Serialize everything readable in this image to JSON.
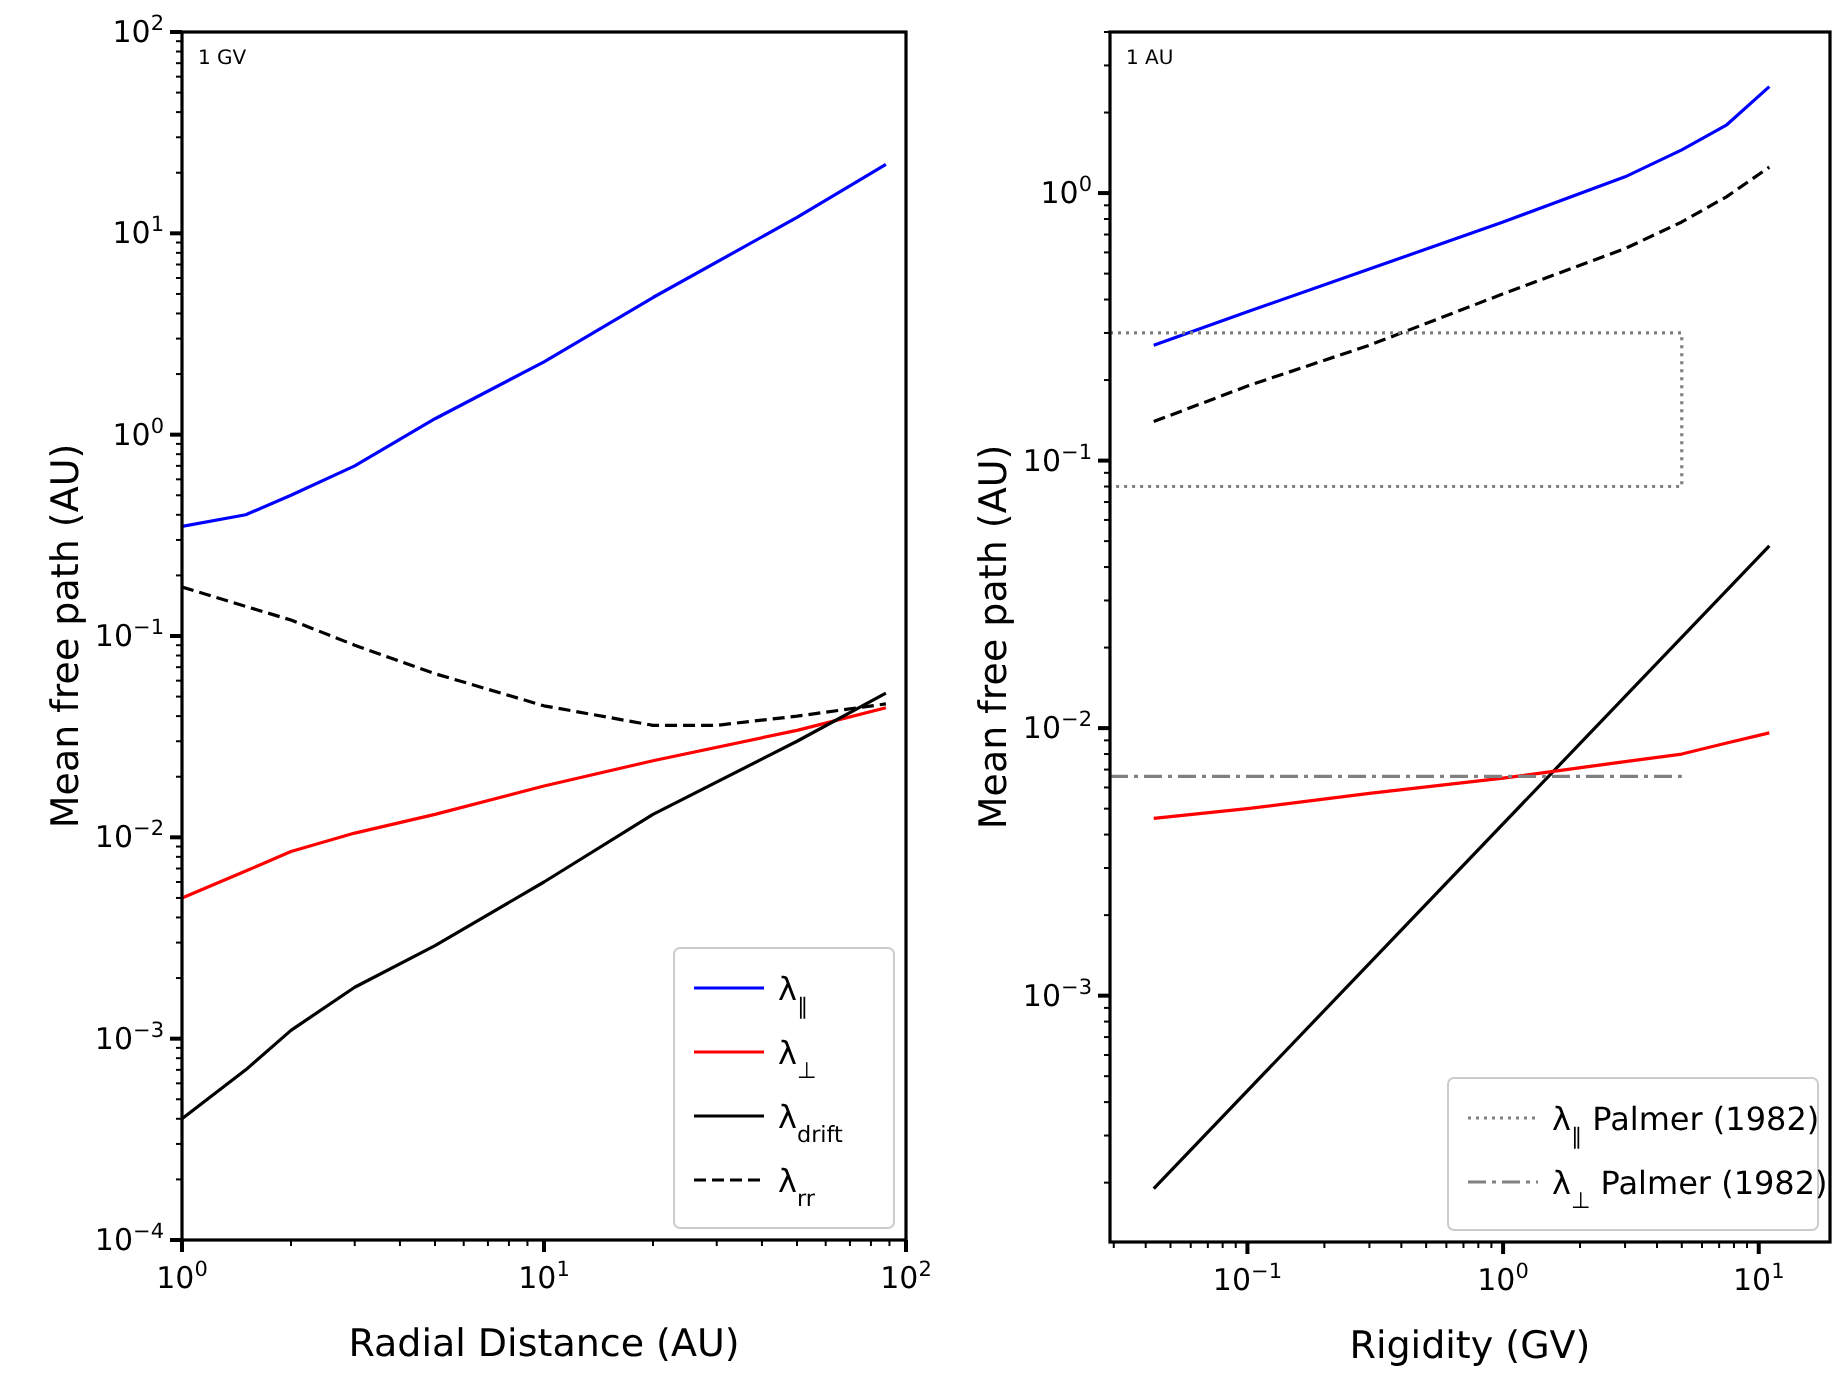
{
  "chart_data": [
    {
      "type": "line",
      "xlabel": "Radial Distance (AU)",
      "ylabel": "Mean free path (AU)",
      "log": "xy",
      "xlim": [
        1,
        100
      ],
      "ylim": [
        0.0001,
        100
      ],
      "xticks": [
        {
          "value": 1,
          "label": "10$^{0}$"
        },
        {
          "value": 10,
          "label": "10$^{1}$"
        },
        {
          "value": 100,
          "label": "10$^{2}$"
        }
      ],
      "yticks": [
        {
          "value": 0.0001,
          "label": "10$^{−4}$"
        },
        {
          "value": 0.001,
          "label": "10$^{−3}$"
        },
        {
          "value": 0.01,
          "label": "10$^{−2}$"
        },
        {
          "value": 0.1,
          "label": "10$^{−1}$"
        },
        {
          "value": 1,
          "label": "10$^{0}$"
        },
        {
          "value": 10,
          "label": "10$^{1}$"
        },
        {
          "value": 100,
          "label": "10$^{2}$"
        }
      ],
      "annotations": [
        "1 GV"
      ],
      "legend": "bottom right",
      "grid": false,
      "series": [
        {
          "name": "λ$_{∥}$",
          "color": "#0000ff",
          "line_style": "solid",
          "x": [
            1,
            1.5,
            2,
            3,
            5,
            10,
            20,
            50,
            88
          ],
          "values": [
            0.35,
            0.4,
            0.5,
            0.7,
            1.2,
            2.3,
            4.8,
            12,
            22
          ]
        },
        {
          "name": "λ$_{⊥}$",
          "color": "#ff0000",
          "line_style": "solid",
          "x": [
            1,
            1.5,
            2,
            3,
            5,
            10,
            20,
            50,
            88
          ],
          "values": [
            0.005,
            0.0068,
            0.0085,
            0.0105,
            0.013,
            0.018,
            0.024,
            0.034,
            0.044
          ]
        },
        {
          "name": "λ$_{drift}$",
          "color": "#000000",
          "line_style": "solid",
          "x": [
            1,
            1.5,
            2,
            3,
            5,
            10,
            20,
            50,
            88
          ],
          "values": [
            0.0004,
            0.0007,
            0.0011,
            0.0018,
            0.0029,
            0.006,
            0.013,
            0.03,
            0.052
          ]
        },
        {
          "name": "λ$_{rr}$",
          "color": "#000000",
          "line_style": "dashed",
          "x": [
            1,
            2,
            3,
            5,
            10,
            20,
            30,
            50,
            88
          ],
          "values": [
            0.175,
            0.12,
            0.09,
            0.065,
            0.045,
            0.036,
            0.036,
            0.04,
            0.046
          ]
        }
      ]
    },
    {
      "type": "line",
      "xlabel": "Rigidity (GV)",
      "ylabel": "Mean free path (AU)",
      "log": "xy",
      "xlim": [
        0.029,
        19
      ],
      "ylim": [
        0.00012,
        4
      ],
      "xticks": [
        {
          "value": 0.1,
          "label": "10$^{−1}$"
        },
        {
          "value": 1,
          "label": "10$^{0}$"
        },
        {
          "value": 10,
          "label": "10$^{1}$"
        }
      ],
      "yticks": [
        {
          "value": 0.001,
          "label": "10$^{−3}$"
        },
        {
          "value": 0.01,
          "label": "10$^{−2}$"
        },
        {
          "value": 0.1,
          "label": "10$^{−1}$"
        },
        {
          "value": 1,
          "label": "10$^{0}$"
        }
      ],
      "annotations": [
        "1 AU"
      ],
      "legend": "bottom right",
      "grid": false,
      "series": [
        {
          "color": "#0000ff",
          "line_style": "solid",
          "x": [
            0.043,
            0.1,
            0.3,
            1,
            3,
            5,
            7.5,
            11
          ],
          "values": [
            0.27,
            0.36,
            0.52,
            0.78,
            1.15,
            1.45,
            1.8,
            2.5
          ]
        },
        {
          "color": "#000000",
          "line_style": "dashed",
          "x": [
            0.043,
            0.1,
            0.3,
            1,
            3,
            5,
            7.5,
            11
          ],
          "values": [
            0.14,
            0.19,
            0.27,
            0.42,
            0.62,
            0.78,
            0.97,
            1.25
          ]
        },
        {
          "color": "#000000",
          "line_style": "solid",
          "x": [
            0.043,
            11
          ],
          "values": [
            0.00019,
            0.048
          ]
        },
        {
          "color": "#ff0000",
          "line_style": "solid",
          "x": [
            0.043,
            0.1,
            0.3,
            1,
            3,
            5,
            7.5,
            11
          ],
          "values": [
            0.0046,
            0.005,
            0.0057,
            0.0065,
            0.0075,
            0.008,
            0.0088,
            0.0096
          ]
        },
        {
          "name": "λ$_{∥}$ Palmer (1982)",
          "color": "#808080",
          "line_style": "dotted",
          "x": [
            0.029,
            5,
            5,
            0.029
          ],
          "values": [
            0.3,
            0.3,
            0.08,
            0.08
          ]
        },
        {
          "name": "λ$_{⊥}$ Palmer (1982)",
          "color": "#808080",
          "line_style": "dashdot",
          "x": [
            0.029,
            5
          ],
          "values": [
            0.0066,
            0.0066
          ]
        }
      ]
    }
  ]
}
